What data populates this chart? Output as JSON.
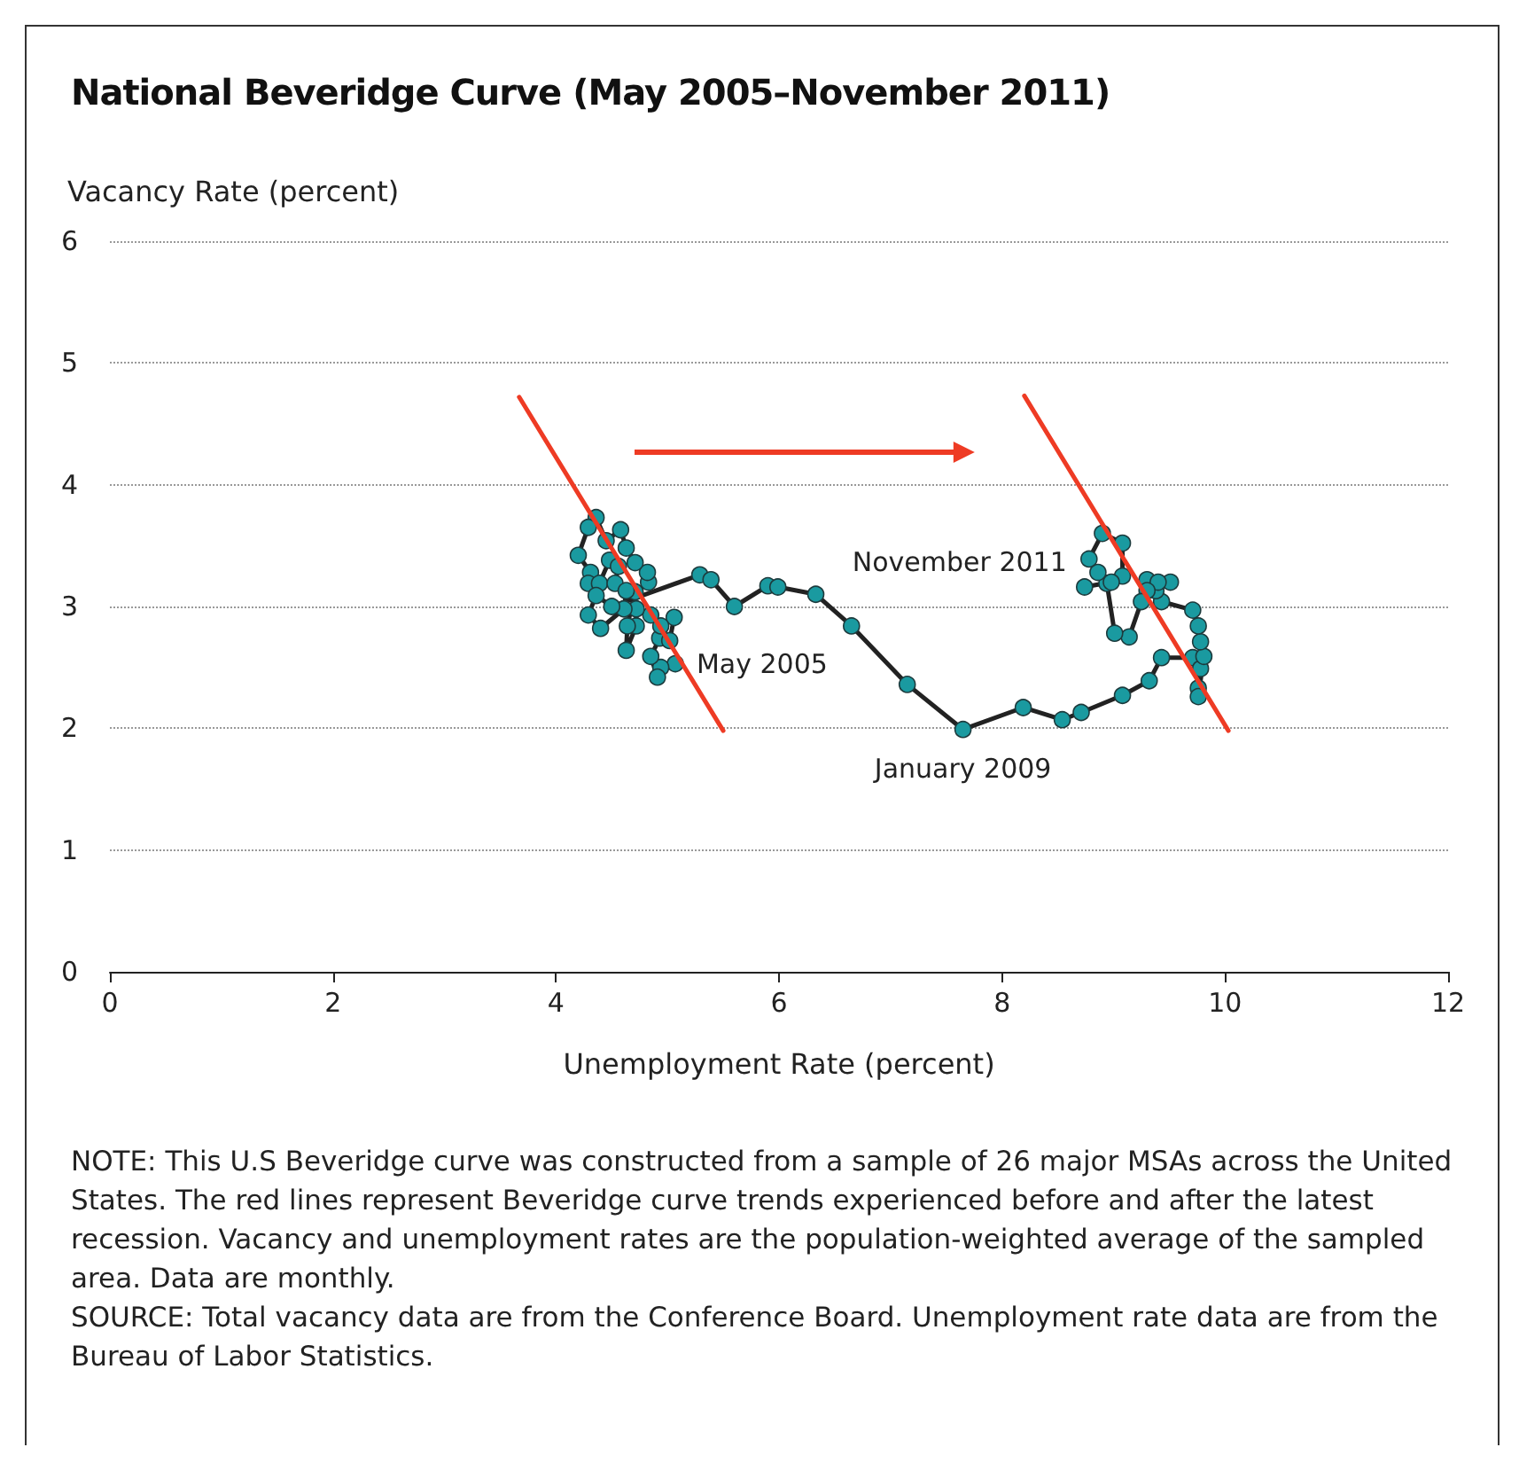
{
  "chart_data": {
    "type": "line",
    "title": "National Beveridge Curve (May 2005–November 2011)",
    "xlabel": "Unemployment Rate (percent)",
    "ylabel": "Vacancy Rate (percent)",
    "xlim": [
      0,
      12
    ],
    "xticks": [
      0,
      2,
      4,
      6,
      8,
      10,
      12
    ],
    "ylim": [
      0,
      6
    ],
    "yticks": [
      0,
      1,
      2,
      3,
      4,
      5,
      6
    ],
    "grid": "y",
    "marker": "circle",
    "line_style": "solid",
    "series": [
      {
        "color": "#1a9aa0",
        "x": [
          5.07,
          4.94,
          4.91,
          4.85,
          4.93,
          5.02,
          5.06,
          4.94,
          4.85,
          4.72,
          4.72,
          4.63,
          4.64,
          4.71,
          4.83,
          4.82,
          4.71,
          4.63,
          4.58,
          4.45,
          4.36,
          4.29,
          4.2,
          4.31,
          4.29,
          4.39,
          4.48,
          4.56,
          4.53,
          4.63,
          4.61,
          4.4,
          4.29,
          4.36,
          4.5,
          5.29,
          5.39,
          5.6,
          5.9,
          5.99,
          6.33,
          6.65,
          7.15,
          7.65,
          8.19,
          8.54,
          8.71,
          9.08,
          9.32,
          9.43,
          9.71,
          9.78,
          9.76,
          9.76,
          9.81,
          9.78,
          9.76,
          9.71,
          9.43,
          9.38,
          9.3,
          9.51,
          9.4,
          9.3,
          9.25,
          9.14,
          9.01,
          8.94,
          8.86,
          8.78,
          8.9,
          9.08,
          9.08,
          8.98,
          8.74
        ],
        "values": [
          2.53,
          2.5,
          2.42,
          2.59,
          2.74,
          2.72,
          2.91,
          2.84,
          2.93,
          2.98,
          2.84,
          2.64,
          2.84,
          3.12,
          3.2,
          3.28,
          3.36,
          3.48,
          3.63,
          3.54,
          3.73,
          3.65,
          3.42,
          3.28,
          3.19,
          3.19,
          3.38,
          3.33,
          3.19,
          3.13,
          2.98,
          2.82,
          2.93,
          3.09,
          3.0,
          3.26,
          3.22,
          3.0,
          3.17,
          3.16,
          3.1,
          2.84,
          2.36,
          1.99,
          2.17,
          2.07,
          2.13,
          2.27,
          2.39,
          2.58,
          2.58,
          2.49,
          2.33,
          2.26,
          2.59,
          2.71,
          2.84,
          2.97,
          3.04,
          3.13,
          3.22,
          3.2,
          3.2,
          3.13,
          3.04,
          2.75,
          2.78,
          3.19,
          3.28,
          3.39,
          3.6,
          3.52,
          3.25,
          3.2,
          3.16
        ]
      },
      {
        "type": "line",
        "marker": "none",
        "color": "#ee3b24",
        "x": [
          3.67,
          5.5
        ],
        "values": [
          4.72,
          1.98
        ]
      },
      {
        "type": "line",
        "marker": "none",
        "color": "#ee3b24",
        "x": [
          8.2,
          10.03
        ],
        "values": [
          4.73,
          1.98
        ]
      }
    ],
    "annotations": [
      {
        "text": "May 2005",
        "x": 5.07,
        "y": 2.53
      },
      {
        "text": "January 2009",
        "x": 7.65,
        "y": 1.99
      },
      {
        "text": "November 2011",
        "x": 8.74,
        "y": 3.16
      },
      "NOTE: This U.S Beveridge curve was constructed from a sample of 26 major MSAs across the United States. The red lines represent Beveridge curve trends experienced before and after the latest recession. Vacancy and unemployment rates are the population-weighted average of the sampled area. Data are monthly.",
      "SOURCE: Total vacancy data are from the Conference Board. Unemployment rate data are from the Bureau of Labor Statistics."
    ]
  }
}
